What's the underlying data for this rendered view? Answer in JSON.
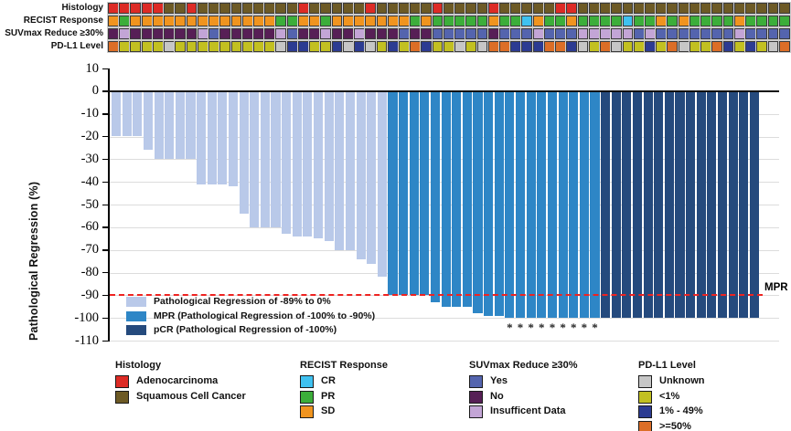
{
  "figure": {
    "mpr_label": "MPR",
    "asterisk_glyph": "*"
  },
  "tracks": {
    "rows": [
      {
        "id": "histology",
        "label": "Histology",
        "values": [
          "adeno",
          "adeno",
          "adeno",
          "adeno",
          "adeno",
          "squam",
          "squam",
          "adeno",
          "squam",
          "squam",
          "squam",
          "squam",
          "squam",
          "squam",
          "squam",
          "squam",
          "squam",
          "adeno",
          "squam",
          "squam",
          "squam",
          "squam",
          "squam",
          "adeno",
          "squam",
          "squam",
          "squam",
          "squam",
          "squam",
          "adeno",
          "squam",
          "squam",
          "squam",
          "squam",
          "adeno",
          "squam",
          "squam",
          "squam",
          "squam",
          "squam",
          "adeno",
          "adeno",
          "squam",
          "squam",
          "squam",
          "squam",
          "squam",
          "squam",
          "squam",
          "squam",
          "squam",
          "squam",
          "squam",
          "squam",
          "squam",
          "squam",
          "squam",
          "squam",
          "squam",
          "squam",
          "squam"
        ]
      },
      {
        "id": "recist",
        "label": "RECIST Response",
        "values": [
          "SD",
          "PR",
          "SD",
          "SD",
          "SD",
          "SD",
          "SD",
          "SD",
          "SD",
          "SD",
          "SD",
          "SD",
          "SD",
          "SD",
          "SD",
          "PR",
          "PR",
          "SD",
          "SD",
          "PR",
          "SD",
          "SD",
          "SD",
          "SD",
          "SD",
          "SD",
          "SD",
          "PR",
          "SD",
          "PR",
          "PR",
          "PR",
          "PR",
          "PR",
          "SD",
          "PR",
          "PR",
          "CR",
          "SD",
          "PR",
          "PR",
          "SD",
          "PR",
          "PR",
          "PR",
          "PR",
          "CR",
          "PR",
          "PR",
          "SD",
          "PR",
          "SD",
          "PR",
          "PR",
          "PR",
          "PR",
          "SD",
          "PR",
          "PR",
          "PR",
          "PR"
        ]
      },
      {
        "id": "suvmax",
        "label": "SUVmax Reduce ≥30%",
        "values": [
          "no",
          "insuff",
          "no",
          "no",
          "no",
          "no",
          "no",
          "no",
          "insuff",
          "yes",
          "no",
          "no",
          "no",
          "no",
          "no",
          "insuff",
          "yes",
          "no",
          "no",
          "insuff",
          "no",
          "no",
          "insuff",
          "no",
          "no",
          "no",
          "yes",
          "no",
          "no",
          "yes",
          "yes",
          "yes",
          "yes",
          "yes",
          "no",
          "yes",
          "yes",
          "yes",
          "insuff",
          "yes",
          "yes",
          "yes",
          "insuff",
          "insuff",
          "insuff",
          "insuff",
          "insuff",
          "yes",
          "insuff",
          "yes",
          "yes",
          "yes",
          "yes",
          "yes",
          "yes",
          "yes",
          "insuff",
          "yes",
          "yes",
          "yes",
          "yes"
        ]
      },
      {
        "id": "pdl1",
        "label": "PD-L1 Level",
        "values": [
          "ge50",
          "lt1",
          "lt1",
          "lt1",
          "lt1",
          "unknown",
          "lt1",
          "lt1",
          "lt1",
          "lt1",
          "lt1",
          "lt1",
          "lt1",
          "lt1",
          "lt1",
          "unknown",
          "p1_49",
          "p1_49",
          "lt1",
          "lt1",
          "p1_49",
          "unknown",
          "p1_49",
          "unknown",
          "lt1",
          "p1_49",
          "lt1",
          "ge50",
          "p1_49",
          "lt1",
          "lt1",
          "unknown",
          "lt1",
          "unknown",
          "ge50",
          "ge50",
          "p1_49",
          "p1_49",
          "p1_49",
          "ge50",
          "ge50",
          "p1_49",
          "unknown",
          "lt1",
          "ge50",
          "unknown",
          "lt1",
          "lt1",
          "p1_49",
          "lt1",
          "ge50",
          "unknown",
          "lt1",
          "lt1",
          "ge50",
          "p1_49",
          "lt1",
          "p1_49",
          "lt1",
          "unknown",
          "ge50"
        ]
      }
    ],
    "palette": {
      "adeno": "#dd2b25",
      "squam": "#6d5a25",
      "SD": "#f0941f",
      "PR": "#3cae3a",
      "CR": "#3fc1f0",
      "yes": "#5464ae",
      "no": "#571f56",
      "insuff": "#c3a5d6",
      "unknown": "#c6c6c6",
      "lt1": "#c2c021",
      "p1_49": "#2c3b92",
      "ge50": "#dc6e27"
    }
  },
  "chart_data": {
    "type": "bar",
    "title": "",
    "xlabel": "",
    "ylabel": "Pathological Regression (%)",
    "ylim": [
      -110,
      10
    ],
    "yticks": [
      10,
      0,
      -10,
      -20,
      -30,
      -40,
      -50,
      -60,
      -70,
      -80,
      -90,
      -100,
      -110
    ],
    "grid": "horizontal",
    "values": [
      -20,
      -20,
      -20,
      -26,
      -30,
      -30,
      -30,
      -30,
      -41,
      -41,
      -41,
      -42,
      -54,
      -60,
      -60,
      -60,
      -63,
      -64,
      -64,
      -65,
      -66,
      -70,
      -70,
      -74,
      -76,
      -82,
      -90,
      -90,
      -90,
      -90,
      -93,
      -95,
      -95,
      -95,
      -98,
      -99,
      -99,
      -100,
      -100,
      -100,
      -100,
      -100,
      -100,
      -100,
      -100,
      -100,
      -100,
      -100,
      -100,
      -100,
      -100,
      -100,
      -100,
      -100,
      -100,
      -100,
      -100,
      -100,
      -100,
      -100,
      -100
    ],
    "bar_categories": [
      "regression",
      "regression",
      "regression",
      "regression",
      "regression",
      "regression",
      "regression",
      "regression",
      "regression",
      "regression",
      "regression",
      "regression",
      "regression",
      "regression",
      "regression",
      "regression",
      "regression",
      "regression",
      "regression",
      "regression",
      "regression",
      "regression",
      "regression",
      "regression",
      "regression",
      "regression",
      "mpr",
      "mpr",
      "mpr",
      "mpr",
      "mpr",
      "mpr",
      "mpr",
      "mpr",
      "mpr",
      "mpr",
      "mpr",
      "mpr",
      "mpr",
      "mpr",
      "mpr",
      "mpr",
      "mpr",
      "mpr",
      "mpr",
      "mpr",
      "pcr",
      "pcr",
      "pcr",
      "pcr",
      "pcr",
      "pcr",
      "pcr",
      "pcr",
      "pcr",
      "pcr",
      "pcr",
      "pcr",
      "pcr",
      "pcr",
      "pcr"
    ],
    "asterisk_bars": [
      38,
      39,
      40,
      41,
      42,
      43,
      44,
      45,
      46
    ],
    "reference_line": {
      "y": -90,
      "label": "MPR",
      "style": "dashed",
      "color": "#ee2321"
    }
  },
  "bar_palette": {
    "regression": "#b9c9e9",
    "mpr": "#2e86c6",
    "pcr": "#254a7d"
  },
  "inplot_legend": [
    {
      "key": "regression",
      "label": "Pathological Regression of -89% to 0%"
    },
    {
      "key": "mpr",
      "label": "MPR (Pathological Regression of -100% to -90%)"
    },
    {
      "key": "pcr",
      "label": "pCR (Pathological Regression of -100%)"
    }
  ],
  "bottom_legends": [
    {
      "title": "Histology",
      "items": [
        {
          "key": "adeno",
          "label": "Adenocarcinoma"
        },
        {
          "key": "squam",
          "label": "Squamous Cell Cancer"
        }
      ]
    },
    {
      "title": "RECIST Response",
      "items": [
        {
          "key": "CR",
          "label": "CR"
        },
        {
          "key": "PR",
          "label": "PR"
        },
        {
          "key": "SD",
          "label": "SD"
        }
      ]
    },
    {
      "title": "SUVmax Reduce ≥30%",
      "items": [
        {
          "key": "yes",
          "label": "Yes"
        },
        {
          "key": "no",
          "label": "No"
        },
        {
          "key": "insuff",
          "label": "Insufficent Data"
        }
      ]
    },
    {
      "title": "PD-L1 Level",
      "items": [
        {
          "key": "unknown",
          "label": "Unknown"
        },
        {
          "key": "lt1",
          "label": "<1%"
        },
        {
          "key": "p1_49",
          "label": "1% - 49%"
        },
        {
          "key": "ge50",
          "label": ">=50%"
        }
      ]
    }
  ]
}
